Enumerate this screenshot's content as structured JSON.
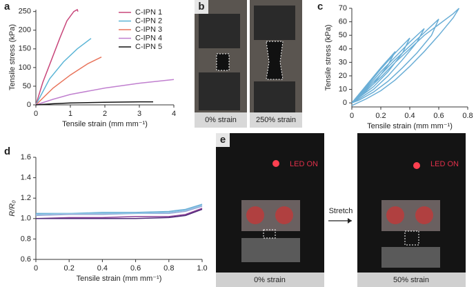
{
  "chart_data": [
    {
      "type": "line",
      "panel_label": "a",
      "xlabel": "Tensile strain (mm mm⁻¹)",
      "ylabel": "Tensile stress (kPa)",
      "xlim": [
        0,
        4
      ],
      "xticks": [
        0,
        1,
        2,
        3,
        4
      ],
      "ylim": [
        0,
        255
      ],
      "yticks": [
        0,
        50,
        100,
        150,
        200,
        250
      ],
      "legend": "upper right",
      "series": [
        {
          "name": "C-IPN 1",
          "color": "#c8467a",
          "x": [
            0,
            0.2,
            0.45,
            0.7,
            0.9,
            1.1,
            1.2,
            1.22
          ],
          "values": [
            0,
            60,
            120,
            180,
            225,
            250,
            255,
            250
          ]
        },
        {
          "name": "C-IPN 2",
          "color": "#5bb5d6",
          "x": [
            0,
            0.4,
            0.8,
            1.2,
            1.6
          ],
          "values": [
            0,
            70,
            115,
            150,
            178
          ]
        },
        {
          "name": "C-IPN 3",
          "color": "#e8735a",
          "x": [
            0,
            0.5,
            1.0,
            1.5,
            1.9
          ],
          "values": [
            0,
            45,
            80,
            110,
            128
          ]
        },
        {
          "name": "C-IPN 4",
          "color": "#c07fcf",
          "x": [
            0,
            0.5,
            1,
            2,
            3,
            4
          ],
          "values": [
            0,
            15,
            28,
            45,
            58,
            68
          ]
        },
        {
          "name": "C-IPN 5",
          "color": "#111111",
          "x": [
            0,
            0.5,
            1,
            2,
            3,
            3.4
          ],
          "values": [
            0,
            3,
            5,
            7,
            8,
            8
          ]
        }
      ]
    },
    {
      "type": "line",
      "panel_label": "c",
      "xlabel": "Tensile strain (mm mm⁻¹)",
      "ylabel": "Tensile stress (kPa)",
      "xlim": [
        0,
        0.8
      ],
      "xticks": [
        0,
        0.2,
        0.4,
        0.6,
        0.8
      ],
      "ylim": [
        -3,
        70
      ],
      "yticks": [
        0,
        10,
        20,
        30,
        40,
        50,
        60,
        70
      ],
      "series": [
        {
          "color": "#6aaed6",
          "x": [
            0,
            0.1,
            0.2,
            0.3,
            0.25,
            0.15,
            0.05,
            0,
            0.1,
            0.2,
            0.3,
            0.4,
            0.35,
            0.25,
            0.15,
            0.05,
            0,
            0.1,
            0.2,
            0.3,
            0.4,
            0.5,
            0.45,
            0.35,
            0.25,
            0.15,
            0.05,
            0,
            0.1,
            0.2,
            0.3,
            0.4,
            0.5,
            0.6,
            0.55,
            0.45,
            0.35,
            0.25,
            0.15,
            0.05,
            0,
            0.1,
            0.2,
            0.3,
            0.4,
            0.5,
            0.6,
            0.7,
            0.74,
            0.7,
            0.6,
            0.5,
            0.4,
            0.3,
            0.2,
            0.1,
            0
          ],
          "values": [
            0,
            13,
            26,
            38,
            28,
            14,
            4,
            0,
            12,
            25,
            37,
            48,
            37,
            23,
            12,
            4,
            0,
            11,
            23,
            34,
            45,
            55,
            45,
            32,
            20,
            10,
            3,
            0,
            10,
            21,
            32,
            42,
            52,
            62,
            50,
            37,
            26,
            16,
            8,
            2,
            0,
            9,
            19,
            30,
            40,
            50,
            58,
            66,
            70,
            63,
            50,
            38,
            27,
            17,
            9,
            3,
            -2
          ]
        }
      ]
    },
    {
      "type": "line",
      "panel_label": "d",
      "xlabel": "Tensile strain (mm mm⁻¹)",
      "ylabel": "R/R₀",
      "xlim": [
        0,
        1
      ],
      "xticks": [
        0,
        0.2,
        0.4,
        0.6,
        0.8,
        {
          "value": 1,
          "label": "1.0"
        }
      ],
      "ylim": [
        0.6,
        1.6
      ],
      "yticks": [
        0.6,
        0.8,
        {
          "value": 1,
          "label": "1.0"
        },
        1.2,
        1.4,
        1.6
      ],
      "x": [
        0,
        0.2,
        0.4,
        0.6,
        0.8,
        0.9,
        1.0
      ],
      "series": [
        {
          "color": "#6aaed6",
          "values": [
            1.05,
            1.05,
            1.06,
            1.06,
            1.07,
            1.09,
            1.14
          ]
        },
        {
          "color": "#9aa8d8",
          "values": [
            1.03,
            1.04,
            1.04,
            1.05,
            1.05,
            1.07,
            1.12
          ]
        },
        {
          "color": "#8a3f96",
          "values": [
            1.0,
            1.01,
            1.01,
            1.02,
            1.02,
            1.04,
            1.1
          ]
        },
        {
          "color": "#4e2a78",
          "values": [
            1.0,
            1.0,
            1.0,
            1.0,
            1.01,
            1.03,
            1.09
          ]
        },
        {
          "color": "#8cc3e3",
          "values": [
            1.04,
            1.05,
            1.05,
            1.05,
            1.06,
            1.08,
            1.13
          ]
        }
      ]
    }
  ],
  "panels": {
    "b": {
      "label": "b",
      "captions": [
        "0% strain",
        "250% strain"
      ]
    },
    "e": {
      "label": "e",
      "led": [
        "LED ON",
        "LED ON"
      ],
      "arrow": "Stretch",
      "captions": [
        "0% strain",
        "50% strain"
      ]
    }
  }
}
